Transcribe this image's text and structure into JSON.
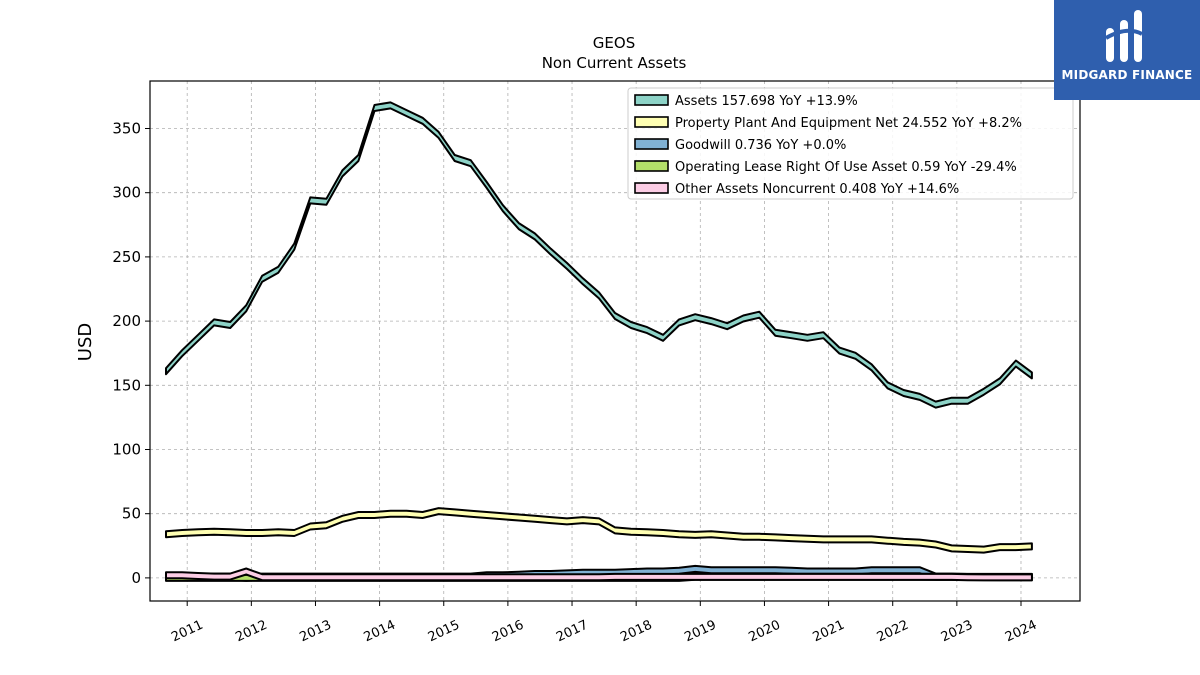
{
  "chart_data": {
    "type": "area",
    "title": "GEOS",
    "subtitle": "Non Current  Assets",
    "ylabel": "USD",
    "xlabel": "",
    "ylim": [
      -18,
      387
    ],
    "xlim": [
      2010.42,
      2024.92
    ],
    "yticks": [
      0,
      50,
      100,
      150,
      200,
      250,
      300,
      350
    ],
    "xticks": [
      "2011",
      "2012",
      "2013",
      "2014",
      "2015",
      "2016",
      "2017",
      "2018",
      "2019",
      "2020",
      "2021",
      "2022",
      "2023",
      "2024"
    ],
    "grid": true,
    "legend_position": "top-right",
    "x": [
      2010.67,
      2010.92,
      2011.17,
      2011.42,
      2011.67,
      2011.92,
      2012.17,
      2012.42,
      2012.67,
      2012.92,
      2013.17,
      2013.42,
      2013.67,
      2013.92,
      2014.17,
      2014.42,
      2014.67,
      2014.92,
      2015.17,
      2015.42,
      2015.67,
      2015.92,
      2016.17,
      2016.42,
      2016.67,
      2016.92,
      2017.17,
      2017.42,
      2017.67,
      2017.92,
      2018.17,
      2018.42,
      2018.67,
      2018.92,
      2019.17,
      2019.42,
      2019.67,
      2019.92,
      2020.17,
      2020.42,
      2020.67,
      2020.92,
      2021.17,
      2021.42,
      2021.67,
      2021.92,
      2022.17,
      2022.42,
      2022.67,
      2022.92,
      2023.17,
      2023.42,
      2023.67,
      2023.92,
      2024.17
    ],
    "series": [
      {
        "name": "Assets  157.698 YoY +13.9%",
        "color": "#8dd3c7",
        "values": [
          161,
          175,
          187,
          199,
          197,
          210,
          233,
          240,
          258,
          294,
          293,
          315,
          327,
          366,
          368,
          362,
          356,
          345,
          327,
          323,
          306,
          288,
          274,
          266,
          254,
          243,
          231,
          220,
          204,
          197,
          193,
          187,
          199,
          203,
          200,
          196,
          202,
          205,
          191,
          189,
          187,
          189,
          177,
          173,
          164,
          150,
          144,
          141,
          135,
          138,
          138,
          145,
          153,
          167,
          157.698
        ]
      },
      {
        "name": "Property Plant And Equipment Net  24.552 YoY +8.2%",
        "color": "#ffffb3",
        "values": [
          34,
          35,
          35.5,
          36,
          35.5,
          35,
          35,
          35.5,
          35,
          40,
          41,
          46,
          49,
          49,
          50,
          50,
          49,
          52,
          51,
          50,
          49,
          48,
          47,
          46,
          45,
          44,
          45,
          44,
          37,
          36,
          35.5,
          35,
          34,
          33.5,
          34,
          33,
          32,
          32,
          31.5,
          31,
          30.5,
          30,
          30,
          30,
          30,
          29,
          28,
          27.5,
          26,
          23,
          22.5,
          22,
          24,
          24,
          24.552
        ]
      },
      {
        "name": "Goodwill  0.736 YoY +0.0%",
        "color": "#80b1d3",
        "values": [
          1,
          1,
          1,
          1,
          1,
          0,
          1,
          1,
          1,
          1,
          1,
          1,
          1,
          1,
          1,
          1,
          1,
          1,
          1,
          1,
          2,
          2,
          2.5,
          3,
          3,
          3.5,
          4,
          4,
          4,
          4.5,
          5,
          5,
          5.5,
          7,
          6,
          6,
          6,
          6,
          6,
          5.5,
          5,
          5,
          5,
          5,
          6,
          6,
          6,
          6,
          1,
          1,
          0.8,
          0.8,
          0.8,
          0.8,
          0.736
        ]
      },
      {
        "name": "Operating Lease Right Of Use Asset  0.59 YoY -29.4%",
        "color": "#b3de69",
        "values": [
          0,
          0,
          0,
          0,
          0,
          0,
          0,
          0,
          0,
          0,
          0,
          0,
          0,
          0,
          0,
          0,
          0,
          0,
          0,
          0,
          0,
          0,
          0,
          0,
          0,
          0,
          0,
          0,
          0,
          0,
          0,
          0,
          0,
          0.9,
          0.9,
          0.9,
          0.9,
          0.9,
          0.9,
          0.9,
          0.9,
          0.9,
          0.9,
          0.9,
          0.9,
          0.9,
          0.9,
          0.9,
          0.8,
          0.8,
          0.7,
          0.7,
          0.6,
          0.6,
          0.59
        ]
      },
      {
        "name": "Other Assets Noncurrent  0.408 YoY +14.6%",
        "color": "#fccde5",
        "values": [
          2,
          2,
          1.5,
          1,
          1,
          5,
          0.5,
          0.5,
          0.5,
          0.5,
          0.5,
          0.5,
          0.5,
          0.5,
          0.5,
          0.5,
          0.5,
          0.5,
          0.5,
          0.5,
          0.5,
          0.5,
          0.5,
          0.5,
          0.5,
          0.5,
          0.5,
          0.5,
          0.8,
          0.8,
          0.8,
          0.8,
          0.8,
          0.8,
          0.8,
          0.8,
          0.8,
          0.8,
          0.8,
          0.8,
          0.8,
          0.8,
          0.8,
          0.8,
          0.8,
          0.8,
          0.8,
          0.8,
          0.8,
          0.8,
          0.5,
          0.4,
          0.4,
          0.4,
          0.408
        ]
      }
    ]
  },
  "logo": {
    "text": "MIDGARD FINANCE",
    "color": "#2f5fae"
  }
}
